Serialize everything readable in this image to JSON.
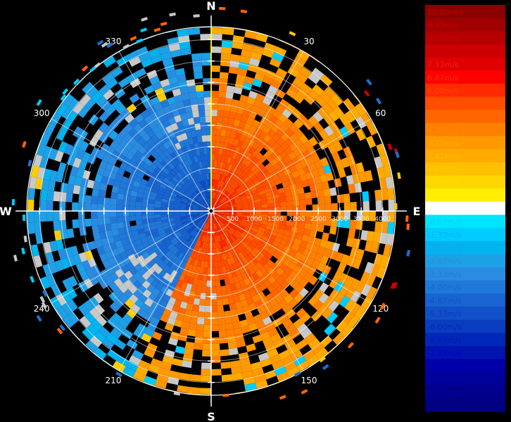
{
  "chart_data": {
    "type": "heatmap",
    "projection": "polar",
    "title": "",
    "cardinal_labels": [
      {
        "text": "N",
        "azimuth": 0
      },
      {
        "text": "E",
        "azimuth": 90
      },
      {
        "text": "S",
        "azimuth": 180
      },
      {
        "text": "W",
        "azimuth": 270
      }
    ],
    "azimuth_labels": [
      {
        "text": "30",
        "azimuth": 30
      },
      {
        "text": "60",
        "azimuth": 60
      },
      {
        "text": "120",
        "azimuth": 120
      },
      {
        "text": "150",
        "azimuth": 150
      },
      {
        "text": "210",
        "azimuth": 210
      },
      {
        "text": "240",
        "azimuth": 240
      },
      {
        "text": "300",
        "azimuth": 300
      },
      {
        "text": "330",
        "azimuth": 330
      }
    ],
    "range_labels": [
      "500",
      "1000",
      "1500",
      "2000",
      "2500",
      "3000",
      "3500",
      "4000"
    ],
    "range_max": 4300,
    "axis_colors": {
      "north_south": "#ffffff",
      "east_west": "#ffffff",
      "north_center": "#ffff00",
      "west_center": "#ffffff"
    },
    "colorbar": {
      "labels": [
        "10.00m/s",
        "9.33m/s",
        "8.67m/s",
        "8.00m/s",
        "7.33m/s",
        "6.67m/s",
        "6.00m/s",
        "5.33m/s",
        "4.67m/s",
        "4.00m/s",
        "3.33m/s",
        "2.67m/s",
        "2.00m/s",
        "1.33m/s",
        "0.67m/s",
        "0.00m/s",
        "-0.67m/s",
        "-1.33m/s",
        "-2.00m/s",
        "-2.67m/s",
        "-3.33m/s",
        "-4.00m/s",
        "-4.67m/s",
        "-5.33m/s",
        "-6.00m/s",
        "-6.67m/s",
        "-7.33m/s",
        "-8.00m/s",
        "-8.67m/s",
        "-9.33m/s",
        "-10.00m/s"
      ],
      "values": [
        10.0,
        9.33,
        8.67,
        8.0,
        7.33,
        6.67,
        6.0,
        5.33,
        4.67,
        4.0,
        3.33,
        2.67,
        2.0,
        1.33,
        0.67,
        0.0,
        -0.67,
        -1.33,
        -2.0,
        -2.67,
        -3.33,
        -4.0,
        -4.67,
        -5.33,
        -6.0,
        -6.67,
        -7.33,
        -8.0,
        -8.67,
        -9.33,
        -10.0
      ],
      "colors": [
        "#8b0000",
        "#a00000",
        "#b50000",
        "#cc0000",
        "#e00000",
        "#ff0000",
        "#ff2a00",
        "#ff4d00",
        "#ff6600",
        "#ff8000",
        "#ff9900",
        "#ffaa00",
        "#ffc000",
        "#ffd700",
        "#ffee00",
        "#ffffff",
        "#00e5ff",
        "#00ccff",
        "#00b4f0",
        "#1ea0e6",
        "#2a8ce0",
        "#2078d8",
        "#1864d0",
        "#1050c8",
        "#0a3cc0",
        "#0028b8",
        "#0014b0",
        "#0000a8",
        "#00009a",
        "#00008c",
        "#000080"
      ],
      "text_colors": [
        "#cc0000",
        "#cc0000",
        "#cc0000",
        "#cc0000",
        "#ee2200",
        "#ee3300",
        "#ff4400",
        "#ff5500",
        "#ff6600",
        "#ff8800",
        "#ffaa00",
        "#ffbb00",
        "#ffcc00",
        "#ffdd00",
        "#ffee00",
        "#ffffff",
        "#00ccff",
        "#00b4f0",
        "#1ea0e6",
        "#2a8ce0",
        "#2078d8",
        "#1864d0",
        "#1050c8",
        "#0a3cc0",
        "#0028b8",
        "#0014b0",
        "#0000cc",
        "#0000bb",
        "#0000aa",
        "#00009a",
        "#00008c"
      ]
    }
  }
}
